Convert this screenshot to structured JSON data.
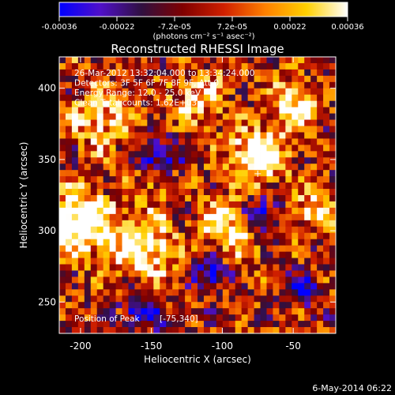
{
  "chart_data": {
    "type": "heatmap",
    "title": "Reconstructed RHESSI Image",
    "xlabel": "Heliocentric X (arcsec)",
    "ylabel": "Heliocentric Y (arcsec)",
    "xlim": [
      -215,
      -20
    ],
    "ylim": [
      228,
      422
    ],
    "x_ticks": [
      -200,
      -150,
      -100,
      -50
    ],
    "y_ticks": [
      250,
      300,
      350,
      400
    ],
    "colorbar": {
      "ticks": [
        "-0.00036",
        "-0.00022",
        "-7.2e-05",
        "7.2e-05",
        "0.00022",
        "0.00036"
      ],
      "unit": "(photons cm⁻² s⁻¹ asec⁻²)",
      "range": [
        -0.00036,
        0.00036
      ],
      "colormap": [
        "#0000ff",
        "#5010c8",
        "#301040",
        "#800000",
        "#d02000",
        "#ff8000",
        "#ffd000",
        "#ffffff"
      ]
    },
    "info_lines": [
      "26-Mar-2012 13:32:04.000 to 13:34:24.000",
      "Detectors: 3F 5F 6F 7F 8F 9F, Att 0",
      "Energy Range: 12.0 - 25.0 keV",
      "Clean     Total counts: 1.62E+03"
    ],
    "peak_label": "Position of Peak",
    "peak_value": "[-75,340]",
    "peak_position": [
      -75,
      340
    ],
    "grid": false
  },
  "footer": {
    "timestamp": "6-May-2014 06:22"
  }
}
